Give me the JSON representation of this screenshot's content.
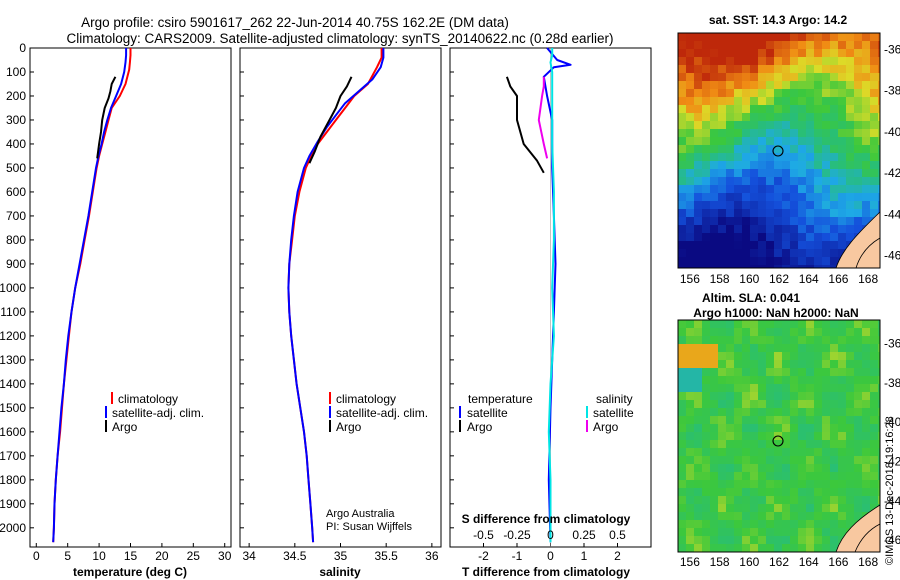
{
  "title": {
    "line1": "Argo profile: csiro 5901617_262 22-Jun-2014 40.75S 162.2E (DM data)",
    "line2": "Climatology: CARS2009. Satellite-adjusted climatology: synTS_20140622.nc (0.28d earlier)"
  },
  "colors": {
    "climatology": "#ff0000",
    "satellite": "#0000ff",
    "argo": "#000000",
    "sal_satellite": "#00e5e5",
    "sal_argo": "#ee00ee"
  },
  "depth_ticks": [
    "0",
    "100",
    "200",
    "300",
    "400",
    "500",
    "600",
    "700",
    "800",
    "900",
    "1000",
    "1100",
    "1200",
    "1300",
    "1400",
    "1500",
    "1600",
    "1700",
    "1800",
    "1900",
    "2000"
  ],
  "panels": {
    "temperature": {
      "xlabel": "temperature (deg C)",
      "ticks": [
        "0",
        "5",
        "10",
        "15",
        "20",
        "25",
        "30"
      ],
      "legend": [
        "climatology",
        "satellite-adj. clim.",
        "Argo"
      ]
    },
    "salinity": {
      "xlabel": "salinity",
      "ticks": [
        "34",
        "34.5",
        "35",
        "35.5",
        "36"
      ],
      "legend": [
        "climatology",
        "satellite-adj. clim.",
        "Argo"
      ],
      "credit1": "Argo Australia",
      "credit2": "PI: Susan Wijffels"
    },
    "difference": {
      "xlabel": "T difference from climatology",
      "ticks": [
        "-2",
        "-1",
        "0",
        "1",
        "2"
      ],
      "s_label": "S difference from climatology",
      "s_ticks": [
        "-0.5",
        "-0.25",
        "0",
        "0.25",
        "0.5"
      ],
      "legend_t_title": "temperature",
      "legend_s_title": "salinity",
      "legend_t": [
        "satellite",
        "Argo"
      ],
      "legend_s": [
        "satellite",
        "Argo"
      ]
    }
  },
  "maps": {
    "sst": {
      "title": "sat. SST: 14.3 Argo: 14.2"
    },
    "sla": {
      "title1": "Altim. SLA: 0.041",
      "title2": "Argo h1000: NaN h2000: NaN"
    },
    "lon_ticks": [
      "156",
      "158",
      "160",
      "162",
      "164",
      "166",
      "168"
    ],
    "lat_ticks": [
      "-36",
      "-38",
      "-40",
      "-42",
      "-44",
      "-46"
    ],
    "marker": "40.75S 162.2E"
  },
  "watermark": "©IMOS 13-Dec-2018 19:16:28",
  "chart_data": [
    {
      "type": "line",
      "name": "temperature",
      "xlabel": "temperature (deg C)",
      "ylabel": "",
      "xlim": [
        -1,
        31
      ],
      "ylim": [
        2080,
        0
      ],
      "series": [
        {
          "name": "climatology",
          "color": "#ff0000",
          "points": [
            [
              15.0,
              0
            ],
            [
              15.0,
              30
            ],
            [
              14.9,
              60
            ],
            [
              14.8,
              90
            ],
            [
              14.2,
              150
            ],
            [
              13.3,
              200
            ],
            [
              12.0,
              250
            ],
            [
              11.5,
              300
            ],
            [
              11.0,
              350
            ],
            [
              10.5,
              400
            ],
            [
              10.0,
              450
            ],
            [
              9.6,
              500
            ],
            [
              9.0,
              600
            ],
            [
              8.4,
              700
            ],
            [
              7.7,
              800
            ],
            [
              7.0,
              900
            ],
            [
              6.2,
              1000
            ],
            [
              5.6,
              1100
            ],
            [
              5.2,
              1200
            ],
            [
              4.8,
              1300
            ],
            [
              4.4,
              1400
            ],
            [
              4.1,
              1500
            ],
            [
              3.8,
              1600
            ],
            [
              3.4,
              1700
            ],
            [
              3.1,
              1800
            ],
            [
              2.9,
              1900
            ],
            [
              2.8,
              2000
            ],
            [
              2.7,
              2060
            ]
          ]
        },
        {
          "name": "satellite-adj. clim.",
          "color": "#0000ff",
          "points": [
            [
              14.3,
              0
            ],
            [
              14.3,
              30
            ],
            [
              14.2,
              60
            ],
            [
              14.0,
              100
            ],
            [
              13.5,
              150
            ],
            [
              12.7,
              200
            ],
            [
              11.9,
              250
            ],
            [
              11.3,
              300
            ],
            [
              10.8,
              350
            ],
            [
              10.4,
              400
            ],
            [
              9.9,
              450
            ],
            [
              9.5,
              500
            ],
            [
              8.9,
              600
            ],
            [
              8.3,
              700
            ],
            [
              7.6,
              800
            ],
            [
              6.9,
              900
            ],
            [
              6.2,
              1000
            ],
            [
              5.6,
              1100
            ],
            [
              5.1,
              1200
            ],
            [
              4.7,
              1300
            ],
            [
              4.4,
              1400
            ],
            [
              4.0,
              1500
            ],
            [
              3.7,
              1600
            ],
            [
              3.4,
              1700
            ],
            [
              3.1,
              1800
            ],
            [
              2.9,
              1900
            ],
            [
              2.8,
              2000
            ],
            [
              2.7,
              2060
            ]
          ]
        },
        {
          "name": "Argo",
          "color": "#000000",
          "points": [
            [
              12.6,
              120
            ],
            [
              12.0,
              150
            ],
            [
              11.8,
              180
            ],
            [
              11.5,
              210
            ],
            [
              10.9,
              250
            ],
            [
              10.5,
              300
            ],
            [
              10.3,
              350
            ],
            [
              10.0,
              400
            ],
            [
              9.7,
              460
            ]
          ]
        }
      ]
    },
    {
      "type": "line",
      "name": "salinity",
      "xlabel": "salinity",
      "ylabel": "",
      "xlim": [
        33.9,
        36.1
      ],
      "ylim": [
        2080,
        0
      ],
      "series": [
        {
          "name": "climatology",
          "color": "#ff0000",
          "points": [
            [
              35.45,
              0
            ],
            [
              35.45,
              40
            ],
            [
              35.4,
              80
            ],
            [
              35.3,
              150
            ],
            [
              35.15,
              200
            ],
            [
              35.05,
              250
            ],
            [
              34.95,
              300
            ],
            [
              34.85,
              350
            ],
            [
              34.75,
              400
            ],
            [
              34.68,
              450
            ],
            [
              34.62,
              500
            ],
            [
              34.55,
              600
            ],
            [
              34.5,
              700
            ],
            [
              34.47,
              800
            ],
            [
              34.44,
              900
            ],
            [
              34.43,
              1000
            ],
            [
              34.44,
              1100
            ],
            [
              34.46,
              1200
            ],
            [
              34.49,
              1300
            ],
            [
              34.52,
              1400
            ],
            [
              34.56,
              1500
            ],
            [
              34.6,
              1600
            ],
            [
              34.63,
              1700
            ],
            [
              34.65,
              1800
            ],
            [
              34.67,
              1900
            ],
            [
              34.69,
              2000
            ],
            [
              34.7,
              2060
            ]
          ]
        },
        {
          "name": "satellite-adj. clim.",
          "color": "#0000ff",
          "points": [
            [
              35.47,
              0
            ],
            [
              35.47,
              40
            ],
            [
              35.44,
              80
            ],
            [
              35.35,
              130
            ],
            [
              35.2,
              180
            ],
            [
              35.05,
              230
            ],
            [
              34.95,
              280
            ],
            [
              34.85,
              330
            ],
            [
              34.75,
              390
            ],
            [
              34.66,
              450
            ],
            [
              34.6,
              500
            ],
            [
              34.53,
              600
            ],
            [
              34.49,
              700
            ],
            [
              34.46,
              800
            ],
            [
              34.44,
              900
            ],
            [
              34.43,
              1000
            ],
            [
              34.44,
              1100
            ],
            [
              34.46,
              1200
            ],
            [
              34.49,
              1300
            ],
            [
              34.52,
              1400
            ],
            [
              34.56,
              1500
            ],
            [
              34.6,
              1600
            ],
            [
              34.63,
              1700
            ],
            [
              34.65,
              1800
            ],
            [
              34.67,
              1900
            ],
            [
              34.69,
              2000
            ],
            [
              34.7,
              2060
            ]
          ]
        },
        {
          "name": "Argo",
          "color": "#000000",
          "points": [
            [
              35.12,
              120
            ],
            [
              35.07,
              160
            ],
            [
              35.0,
              200
            ],
            [
              34.95,
              250
            ],
            [
              34.88,
              300
            ],
            [
              34.78,
              370
            ],
            [
              34.72,
              430
            ],
            [
              34.66,
              480
            ]
          ]
        }
      ]
    },
    {
      "type": "line",
      "name": "difference",
      "xlabel": "T difference from climatology",
      "ylabel": "",
      "xlim": [
        -3,
        3
      ],
      "ylim": [
        2080,
        0
      ],
      "series": [
        {
          "name": "temperature satellite",
          "color": "#0000ff",
          "points": [
            [
              -0.1,
              0
            ],
            [
              0.2,
              50
            ],
            [
              0.6,
              70
            ],
            [
              0.1,
              80
            ],
            [
              -0.2,
              120
            ],
            [
              -0.1,
              200
            ],
            [
              0.05,
              300
            ],
            [
              0.05,
              500
            ],
            [
              0.1,
              700
            ],
            [
              0.15,
              900
            ],
            [
              0.1,
              1100
            ],
            [
              0.05,
              1300
            ],
            [
              0.0,
              1500
            ],
            [
              -0.05,
              1800
            ],
            [
              0.0,
              2060
            ]
          ]
        },
        {
          "name": "temperature Argo",
          "color": "#000000",
          "points": [
            [
              -1.3,
              120
            ],
            [
              -1.2,
              160
            ],
            [
              -1.0,
              200
            ],
            [
              -1.0,
              250
            ],
            [
              -1.0,
              300
            ],
            [
              -0.8,
              400
            ],
            [
              -0.4,
              470
            ],
            [
              -0.2,
              520
            ]
          ]
        },
        {
          "name": "salinity satellite",
          "color": "#00e5e5",
          "points": [
            [
              0.05,
              0
            ],
            [
              0.05,
              30
            ],
            [
              0.0,
              60
            ],
            [
              0.05,
              100
            ],
            [
              0.05,
              200
            ],
            [
              0.05,
              400
            ],
            [
              0.1,
              600
            ],
            [
              0.1,
              800
            ],
            [
              0.05,
              1000
            ],
            [
              0.1,
              1200
            ],
            [
              0.0,
              1400
            ],
            [
              -0.05,
              1600
            ],
            [
              0.0,
              1800
            ],
            [
              0.0,
              2060
            ]
          ]
        },
        {
          "name": "salinity Argo",
          "color": "#ee00ee",
          "points": [
            [
              -0.2,
              120
            ],
            [
              -0.2,
              160
            ],
            [
              -0.25,
              200
            ],
            [
              -0.35,
              300
            ],
            [
              -0.2,
              400
            ],
            [
              -0.1,
              460
            ]
          ]
        }
      ]
    }
  ]
}
